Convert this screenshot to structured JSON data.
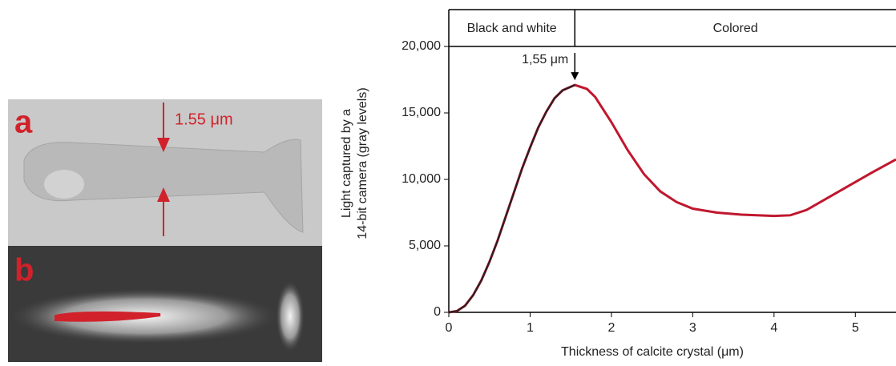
{
  "panels": {
    "a": {
      "label": "a",
      "annotation": "1.55 μm"
    },
    "b": {
      "label": "b"
    }
  },
  "chart_data": {
    "type": "line",
    "regions": [
      "Black and white",
      "Colored"
    ],
    "annotation": {
      "text": "1,55 μm",
      "x": 1.55
    },
    "xlabel": "Thickness of calcite crystal (μm)",
    "ylabel": [
      "Light captured by a",
      "14-bit camera (gray levels)"
    ],
    "xlim": [
      0,
      5.5
    ],
    "ylim": [
      0,
      20000
    ],
    "xticks": [
      0,
      1,
      2,
      3,
      4,
      5
    ],
    "yticks": [
      0,
      {
        "value": 5000,
        "label": "5,000"
      },
      {
        "value": 10000,
        "label": "10,000"
      },
      {
        "value": 15000,
        "label": "15,000"
      },
      {
        "value": 20000,
        "label": "20,000"
      }
    ],
    "series": [
      {
        "color": "#c0172e",
        "x": [
          0,
          0.1,
          0.2,
          0.3,
          0.4,
          0.5,
          0.6,
          0.7,
          0.8,
          0.9,
          1.0,
          1.1,
          1.2,
          1.3,
          1.4,
          1.55,
          1.7,
          1.8,
          2.0,
          2.2,
          2.4,
          2.6,
          2.8,
          3.0,
          3.3,
          3.6,
          4.0,
          4.2,
          4.4,
          4.6,
          4.8,
          5.0,
          5.2,
          5.5
        ],
        "values": [
          0,
          100,
          500,
          1300,
          2400,
          3800,
          5400,
          7200,
          9000,
          10800,
          12400,
          13900,
          15100,
          16100,
          16700,
          17100,
          16800,
          16200,
          14300,
          12200,
          10400,
          9100,
          8300,
          7800,
          7500,
          7350,
          7250,
          7300,
          7700,
          8400,
          9100,
          9800,
          10500,
          11500
        ]
      },
      {
        "color": "#222222",
        "x": [
          0,
          0.1,
          0.2,
          0.3,
          0.4,
          0.5,
          0.6,
          0.7,
          0.8,
          0.9,
          1.0,
          1.1,
          1.2,
          1.3,
          1.4,
          1.55
        ],
        "values": [
          0,
          100,
          500,
          1300,
          2400,
          3800,
          5400,
          7200,
          9000,
          10800,
          12400,
          13900,
          15100,
          16100,
          16700,
          17100
        ]
      }
    ]
  }
}
